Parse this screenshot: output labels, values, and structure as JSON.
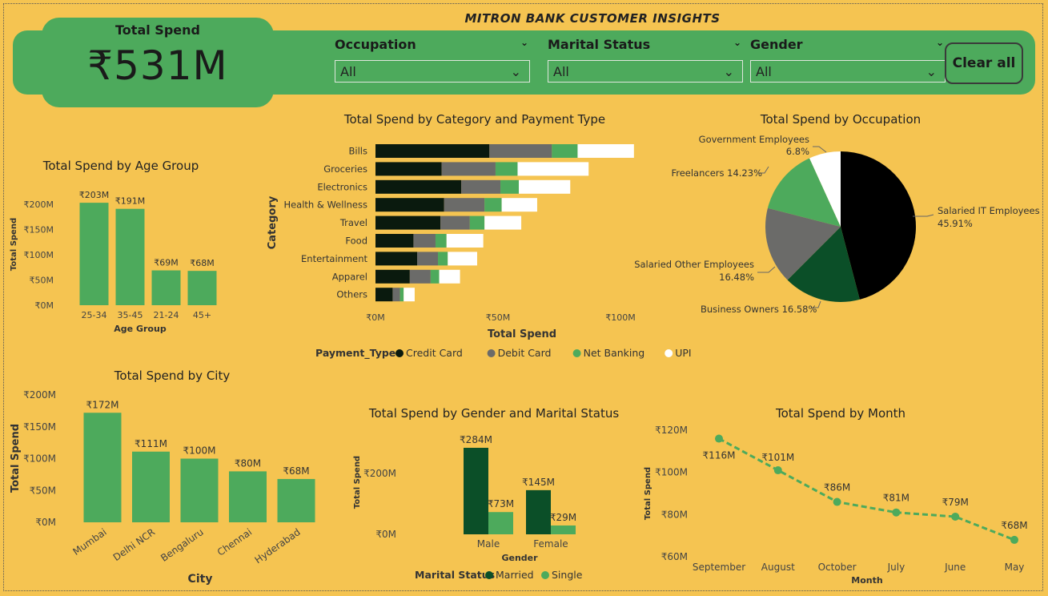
{
  "dashboard_title": "MITRON BANK CUSTOMER INSIGHTS",
  "kpi": {
    "label": "Total Spend",
    "value": "₹531M"
  },
  "slicers": [
    {
      "label": "Occupation",
      "value": "All"
    },
    {
      "label": "Marital Status",
      "value": "All"
    },
    {
      "label": "Gender",
      "value": "All"
    }
  ],
  "clear_all_label": "Clear all",
  "colors": {
    "accent": "#4DAA5C",
    "background": "#F5C451",
    "credit_card": "#0A1A0E",
    "debit_card": "#6B6B69",
    "net_banking": "#4DAA5C",
    "upi": "#FFFFFF",
    "married": "#0B4F28",
    "single": "#4DAA5C"
  },
  "chart_data": [
    {
      "id": "age",
      "type": "bar",
      "title": "Total Spend by Age Group",
      "xlabel": "Age Group",
      "ylabel": "Total Spend",
      "categories": [
        "25-34",
        "35-45",
        "21-24",
        "45+"
      ],
      "values": [
        203,
        191,
        69,
        68
      ],
      "data_labels": [
        "₹203M",
        "₹191M",
        "₹69M",
        "₹68M"
      ],
      "yticks": [
        0,
        50,
        100,
        150,
        200
      ],
      "ytick_labels": [
        "₹0M",
        "₹50M",
        "₹100M",
        "₹150M",
        "₹200M"
      ],
      "ylim": [
        0,
        200
      ]
    },
    {
      "id": "category",
      "type": "bar",
      "orientation": "horizontal",
      "stacked": true,
      "title": "Total Spend by Category and Payment Type",
      "xlabel": "Total Spend",
      "ylabel": "Category",
      "legend_title": "Payment_Type",
      "categories": [
        "Bills",
        "Groceries",
        "Electronics",
        "Health & Wellness",
        "Travel",
        "Food",
        "Entertainment",
        "Apparel",
        "Others"
      ],
      "series": [
        {
          "name": "Credit Card",
          "color": "#0A1A0E",
          "values": [
            46.5,
            27,
            35,
            28,
            26.5,
            15.5,
            17,
            14,
            7
          ]
        },
        {
          "name": "Debit Card",
          "color": "#6B6B69",
          "values": [
            25.5,
            22,
            16,
            16.5,
            12,
            9,
            8.5,
            8.5,
            3
          ]
        },
        {
          "name": "Net Banking",
          "color": "#4DAA5C",
          "values": [
            10.5,
            9,
            7.5,
            7,
            6,
            4.5,
            4,
            3.5,
            1.5
          ]
        },
        {
          "name": "UPI",
          "color": "#FFFFFF",
          "values": [
            23,
            29,
            21,
            14.5,
            15,
            15,
            12,
            8.5,
            4.5
          ]
        }
      ],
      "xticks": [
        0,
        50,
        100
      ],
      "xtick_labels": [
        "₹0M",
        "₹50M",
        "₹100M"
      ],
      "xlim": [
        0,
        100
      ]
    },
    {
      "id": "occupation",
      "type": "pie",
      "title": "Total Spend by Occupation",
      "slices": [
        {
          "name": "Salaried IT Employees",
          "pct": 45.91,
          "label": "45.91%",
          "color": "#000000"
        },
        {
          "name": "Business Owners",
          "pct": 16.58,
          "label": "16.58%",
          "color": "#0B4F28"
        },
        {
          "name": "Salaried Other Employees",
          "pct": 16.48,
          "label": "16.48%",
          "color": "#6B6B69"
        },
        {
          "name": "Freelancers",
          "pct": 14.23,
          "label": "14.23%",
          "color": "#4DAA5C"
        },
        {
          "name": "Government Employees",
          "pct": 6.8,
          "label": "6.8%",
          "color": "#FFFFFF"
        }
      ]
    },
    {
      "id": "city",
      "type": "bar",
      "title": "Total Spend by City",
      "xlabel": "City",
      "ylabel": "Total Spend",
      "categories": [
        "Mumbai",
        "Delhi NCR",
        "Bengaluru",
        "Chennai",
        "Hyderabad"
      ],
      "values": [
        172,
        111,
        100,
        80,
        68
      ],
      "data_labels": [
        "₹172M",
        "₹111M",
        "₹100M",
        "₹80M",
        "₹68M"
      ],
      "yticks": [
        0,
        50,
        100,
        150,
        200
      ],
      "ytick_labels": [
        "₹0M",
        "₹50M",
        "₹100M",
        "₹150M",
        "₹200M"
      ],
      "ylim": [
        0,
        200
      ]
    },
    {
      "id": "gender",
      "type": "bar",
      "title": "Total Spend by Gender and Marital Status",
      "xlabel": "Gender",
      "ylabel": "Total Spend",
      "legend_title": "Marital Status",
      "categories": [
        "Male",
        "Female"
      ],
      "series": [
        {
          "name": "Married",
          "color": "#0B4F28",
          "values": [
            284,
            145
          ],
          "data_labels": [
            "₹284M",
            "₹145M"
          ]
        },
        {
          "name": "Single",
          "color": "#4DAA5C",
          "values": [
            73,
            29
          ],
          "data_labels": [
            "₹73M",
            "₹29M"
          ]
        }
      ],
      "yticks": [
        0,
        200
      ],
      "ytick_labels": [
        "₹0M",
        "₹200M"
      ],
      "ylim": [
        0,
        284
      ]
    },
    {
      "id": "month",
      "type": "line",
      "title": "Total Spend by Month",
      "xlabel": "Month",
      "ylabel": "Total Spend",
      "categories": [
        "September",
        "August",
        "October",
        "July",
        "June",
        "May"
      ],
      "values": [
        116,
        101,
        86,
        81,
        79,
        68
      ],
      "data_labels": [
        "₹116M",
        "₹101M",
        "₹86M",
        "₹81M",
        "₹79M",
        "₹68M"
      ],
      "yticks": [
        60,
        80,
        100,
        120
      ],
      "ytick_labels": [
        "₹60M",
        "₹80M",
        "₹100M",
        "₹120M"
      ],
      "ylim": [
        60,
        120
      ]
    }
  ]
}
